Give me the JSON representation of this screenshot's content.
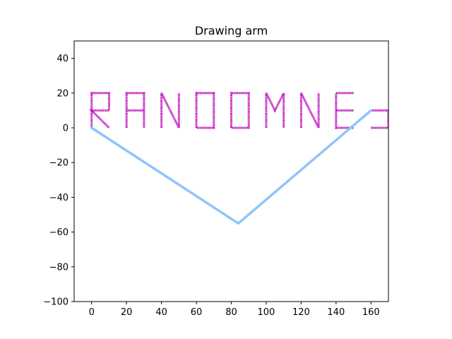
{
  "chart_data": {
    "type": "line",
    "title": "Drawing arm",
    "xlabel": "",
    "ylabel": "",
    "xlim": [
      -10,
      170
    ],
    "ylim": [
      -100,
      50
    ],
    "x_ticks": [
      0,
      20,
      40,
      60,
      80,
      100,
      120,
      140,
      160
    ],
    "y_ticks": [
      -100,
      -80,
      -60,
      -40,
      -20,
      0,
      20,
      40
    ],
    "grid": false,
    "legend": "none",
    "series": [
      {
        "role": "arm",
        "color": "#90c4fa",
        "x": [
          0,
          84,
          160
        ],
        "y": [
          0,
          -55,
          10
        ]
      },
      {
        "role": "drawn-letters",
        "color": "#bb00bb",
        "segments": [
          [
            [
              0,
              0
            ],
            [
              0,
              20
            ],
            [
              10,
              20
            ],
            [
              10,
              10
            ],
            [
              0,
              10
            ],
            [
              10,
              0
            ]
          ],
          [
            [
              20,
              0
            ],
            [
              20,
              20
            ],
            [
              30,
              20
            ],
            [
              30,
              0
            ]
          ],
          [
            [
              20,
              10
            ],
            [
              30,
              10
            ]
          ],
          [
            [
              40,
              0
            ],
            [
              40,
              20
            ],
            [
              50,
              0
            ],
            [
              50,
              20
            ]
          ],
          [
            [
              60,
              0
            ],
            [
              60,
              20
            ],
            [
              70,
              20
            ],
            [
              70,
              0
            ],
            [
              60,
              0
            ]
          ],
          [
            [
              80,
              0
            ],
            [
              80,
              20
            ],
            [
              90,
              20
            ],
            [
              90,
              0
            ],
            [
              80,
              0
            ]
          ],
          [
            [
              100,
              0
            ],
            [
              100,
              20
            ],
            [
              105,
              10
            ],
            [
              110,
              20
            ],
            [
              110,
              0
            ]
          ],
          [
            [
              120,
              0
            ],
            [
              120,
              20
            ],
            [
              130,
              0
            ],
            [
              130,
              20
            ]
          ],
          [
            [
              150,
              20
            ],
            [
              140,
              20
            ],
            [
              140,
              0
            ],
            [
              150,
              0
            ]
          ],
          [
            [
              140,
              10
            ],
            [
              150,
              10
            ]
          ],
          [
            [
              160,
              10
            ],
            [
              170,
              10
            ]
          ],
          [
            [
              160,
              0
            ],
            [
              170,
              0
            ]
          ],
          [
            [
              170,
              0
            ],
            [
              170,
              10
            ]
          ]
        ]
      }
    ]
  }
}
